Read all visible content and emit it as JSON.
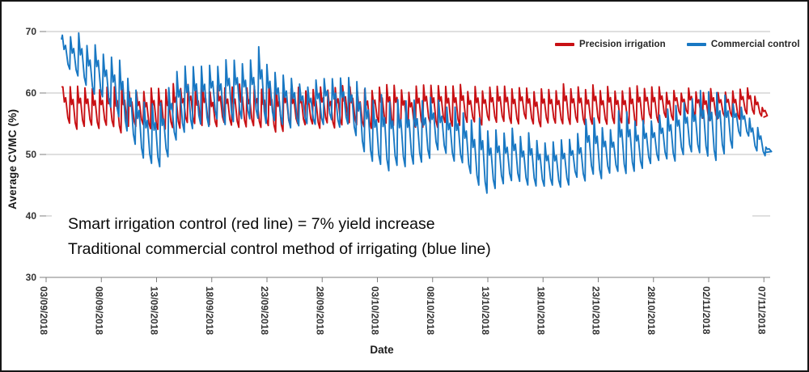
{
  "figure": {
    "background": "#ffffff",
    "border_color": "#161616"
  },
  "chart_data": {
    "type": "line",
    "title": "",
    "xlabel": "Date",
    "ylabel": "Average CVMC (%)",
    "ylim": [
      30,
      70
    ],
    "yticks": [
      70,
      60,
      50,
      40,
      30
    ],
    "grid": true,
    "xtick_interval_days": 5,
    "xtick_labels": [
      "03/09/2018",
      "08/09/2018",
      "13/09/2018",
      "18/09/2018",
      "23/09/2018",
      "28/09/2018",
      "03/10/2018",
      "08/10/2018",
      "13/10/2018",
      "18/10/2018",
      "23/10/2018",
      "28/10/2018",
      "02/11/2018",
      "07/11/2018"
    ],
    "legend": {
      "position": "top-right",
      "entries": [
        {
          "label": "Precision irrigation",
          "color": "#c81014"
        },
        {
          "label": "Commercial control",
          "color": "#1978c3"
        }
      ]
    },
    "annotations": {
      "line1": "Smart irrigation control (red line) = 7% yield increase",
      "line2": "Traditional commercial control method of irrigating (blue line)"
    },
    "series_note": "Envelope points are [days since 03/09/2018, daily low %, daily high %]; each line oscillates in irrigation sawtooth cycles between its low and high envelope.",
    "series": [
      {
        "name": "Precision irrigation",
        "color": "#c81014",
        "cycles_per_day": 1.5,
        "jitter": 1.1,
        "seed": 7,
        "envelope": [
          [
            1.45,
            55.5,
            61
          ],
          [
            3,
            54.5,
            61
          ],
          [
            5,
            54.3,
            60.8
          ],
          [
            7,
            54,
            60.5
          ],
          [
            9,
            54.5,
            60.6
          ],
          [
            11,
            54,
            61
          ],
          [
            13,
            55,
            61
          ],
          [
            15,
            54.5,
            60.6
          ],
          [
            17,
            55,
            61
          ],
          [
            19,
            54.5,
            61
          ],
          [
            21,
            54,
            60.5
          ],
          [
            23,
            55,
            61
          ],
          [
            25,
            54.5,
            60.6
          ],
          [
            27,
            55,
            61
          ],
          [
            29,
            54.5,
            60.5
          ],
          [
            31,
            55,
            61
          ],
          [
            33,
            54.5,
            60.6
          ],
          [
            35,
            55,
            61
          ],
          [
            37,
            54.5,
            61
          ],
          [
            39,
            55,
            60.6
          ],
          [
            41,
            55,
            61
          ],
          [
            43,
            55.5,
            61
          ],
          [
            45,
            55,
            60.6
          ],
          [
            47,
            55.5,
            61
          ],
          [
            49,
            55,
            61
          ],
          [
            51,
            55.3,
            60.5
          ],
          [
            53,
            55,
            61
          ],
          [
            55,
            55.5,
            60.5
          ],
          [
            57,
            56,
            60.5
          ],
          [
            59,
            56.5,
            60.2
          ],
          [
            60.5,
            55.5,
            60.5
          ],
          [
            62,
            56,
            60
          ],
          [
            63.5,
            56.5,
            60.5
          ],
          [
            64.6,
            56,
            58.5
          ],
          [
            65,
            56,
            57
          ]
        ]
      },
      {
        "name": "Commercial control",
        "color": "#1978c3",
        "cycles_per_day": 1.35,
        "jitter": 1.3,
        "seed": 41,
        "envelope": [
          [
            1.4,
            64,
            68.8
          ],
          [
            2.6,
            63.5,
            70
          ],
          [
            3.6,
            61,
            68.5
          ],
          [
            5,
            59,
            66.5
          ],
          [
            6.5,
            57,
            65.5
          ],
          [
            7.5,
            53.5,
            62.5
          ],
          [
            8.5,
            50,
            59.5
          ],
          [
            9.8,
            47.5,
            57.5
          ],
          [
            10.8,
            49.5,
            58.5
          ],
          [
            12,
            53,
            64
          ],
          [
            13.5,
            54.5,
            65
          ],
          [
            15,
            55,
            64
          ],
          [
            16.5,
            55.5,
            65.5
          ],
          [
            18,
            55.5,
            64.5
          ],
          [
            19.3,
            56,
            67.5
          ],
          [
            20.5,
            55,
            63.5
          ],
          [
            22,
            54.5,
            62
          ],
          [
            24,
            55,
            61.5
          ],
          [
            26,
            55.5,
            62
          ],
          [
            27.8,
            54,
            62.5
          ],
          [
            29.3,
            48.5,
            59.5
          ],
          [
            31.2,
            47.5,
            59
          ],
          [
            33,
            47.8,
            58.5
          ],
          [
            34.8,
            50,
            59.5
          ],
          [
            36.2,
            50.5,
            58.5
          ],
          [
            37.8,
            48.5,
            57
          ],
          [
            39.2,
            45.5,
            55.5
          ],
          [
            40.2,
            43.8,
            54
          ],
          [
            41.8,
            46,
            54
          ],
          [
            43.5,
            45.5,
            53
          ],
          [
            45,
            44.8,
            52.5
          ],
          [
            46.8,
            45.2,
            52
          ],
          [
            48.5,
            46,
            53
          ],
          [
            49.4,
            46.5,
            57.2
          ],
          [
            50.8,
            46.5,
            53.5
          ],
          [
            52.3,
            47,
            57.6
          ],
          [
            53.8,
            48,
            55
          ],
          [
            55.2,
            48.5,
            56
          ],
          [
            56.8,
            49.5,
            57.5
          ],
          [
            58.2,
            50,
            58
          ],
          [
            59.6,
            50,
            60.5
          ],
          [
            61,
            48.5,
            60
          ],
          [
            62.3,
            52,
            58.5
          ],
          [
            63.4,
            52.9,
            57
          ],
          [
            64.4,
            51,
            55.5
          ],
          [
            65.2,
            50.3,
            51.5
          ]
        ]
      }
    ],
    "colors": {
      "grid": "#bfbfbf",
      "axis": "#7f7f7f",
      "tick_text": "#333333"
    }
  }
}
